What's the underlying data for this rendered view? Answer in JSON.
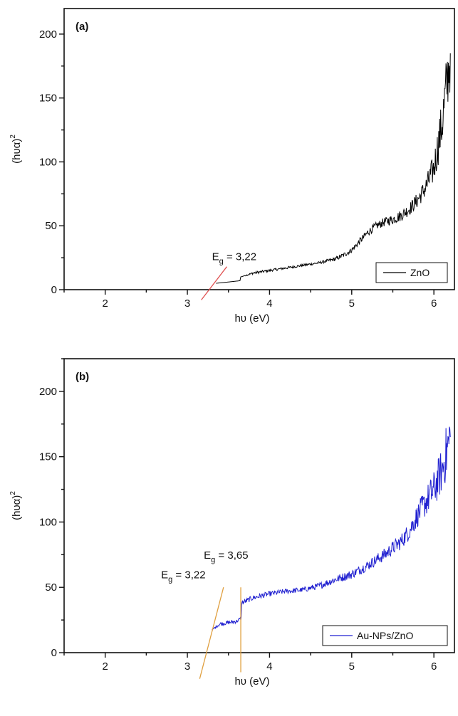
{
  "chart_data": [
    {
      "type": "line",
      "panel_label": "(a)",
      "xlabel": "hυ (eV)",
      "ylabel": "(hυα)",
      "ylabel_sup": "2",
      "xlim": [
        1.5,
        6.25
      ],
      "ylim": [
        0,
        220
      ],
      "xticks": [
        2,
        3,
        4,
        5,
        6
      ],
      "yticks": [
        0,
        50,
        100,
        150,
        200
      ],
      "legend": "bottom-right",
      "grid": false,
      "series": [
        {
          "name": "ZnO",
          "color": "#000000",
          "x": [
            3.35,
            3.5,
            3.64,
            3.65,
            3.8,
            4.0,
            4.2,
            4.4,
            4.6,
            4.8,
            4.9,
            5.0,
            5.1,
            5.2,
            5.3,
            5.4,
            5.5,
            5.6,
            5.7,
            5.8,
            5.9,
            6.0,
            6.1,
            6.2
          ],
          "y": [
            5,
            6,
            7,
            10,
            13,
            15,
            17,
            19,
            21,
            24,
            27,
            31,
            38,
            45,
            50,
            53,
            55,
            58,
            63,
            70,
            80,
            95,
            130,
            185
          ],
          "noise": [
            0,
            0,
            0,
            0,
            1,
            1,
            1,
            1,
            1,
            1.5,
            2,
            2,
            2.5,
            3,
            3,
            3.5,
            4,
            4.5,
            5,
            6,
            8,
            12,
            20,
            30
          ]
        }
      ],
      "annotations": [
        {
          "text_main": "E",
          "text_sub": "g",
          "text_rest": " = 3,22",
          "x": 3.3,
          "y": 23
        }
      ],
      "fit_lines": [
        {
          "x": [
            3.17,
            3.48
          ],
          "y": [
            -8,
            18
          ],
          "color": "#e05050"
        }
      ]
    },
    {
      "type": "line",
      "panel_label": "(b)",
      "xlabel": "hυ (eV)",
      "ylabel": "(hυα)",
      "ylabel_sup": "2",
      "xlim": [
        1.5,
        6.25
      ],
      "ylim": [
        0,
        225
      ],
      "xticks": [
        2,
        3,
        4,
        5,
        6
      ],
      "yticks": [
        0,
        50,
        100,
        150,
        200
      ],
      "legend": "bottom-right",
      "grid": false,
      "series": [
        {
          "name": "Au-NPs/ZnO",
          "color": "#2020d0",
          "x": [
            3.3,
            3.35,
            3.4,
            3.5,
            3.6,
            3.65,
            3.66,
            3.8,
            4.0,
            4.2,
            4.4,
            4.6,
            4.8,
            5.0,
            5.2,
            5.4,
            5.6,
            5.7,
            5.8,
            5.9,
            6.0,
            6.1,
            6.2
          ],
          "y": [
            17,
            20,
            22,
            23,
            24,
            26,
            38,
            42,
            45,
            47,
            48,
            51,
            56,
            60,
            67,
            75,
            85,
            93,
            105,
            115,
            125,
            140,
            165
          ],
          "noise": [
            1,
            1,
            1.5,
            1.5,
            1.5,
            1.5,
            2,
            2,
            2,
            2,
            2,
            2.5,
            3,
            3.5,
            4,
            5,
            6,
            7,
            9,
            11,
            14,
            18,
            25
          ]
        }
      ],
      "annotations": [
        {
          "text_main": "E",
          "text_sub": "g",
          "text_rest": " = 3,22",
          "x": 2.68,
          "y": 57
        },
        {
          "text_main": "E",
          "text_sub": "g",
          "text_rest": " = 3,65",
          "x": 3.2,
          "y": 72
        }
      ],
      "fit_lines": [
        {
          "x": [
            3.15,
            3.44
          ],
          "y": [
            -20,
            50
          ],
          "color": "#e0a040"
        },
        {
          "x": [
            3.65,
            3.65
          ],
          "y": [
            -15,
            50
          ],
          "color": "#e0a040"
        }
      ]
    }
  ]
}
